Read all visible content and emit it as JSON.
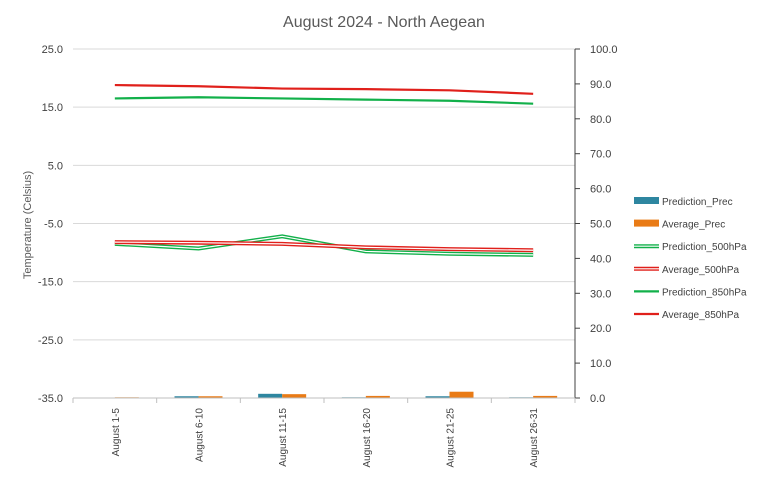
{
  "chart_data": {
    "type": "line",
    "title": "August 2024 - North Aegean",
    "ylabel": "Temperature  (Celsius)",
    "y2label": "",
    "xlabel": "",
    "ylim": [
      -35,
      25
    ],
    "y2lim": [
      0,
      100
    ],
    "yticks": [
      "25.0",
      "15.0",
      "5.0",
      "-5.0",
      "-15.0",
      "-25.0",
      "-35.0"
    ],
    "y2ticks": [
      "100.0",
      "90.0",
      "80.0",
      "70.0",
      "60.0",
      "50.0",
      "40.0",
      "30.0",
      "20.0",
      "10.0",
      "0.0"
    ],
    "grid": true,
    "legend_position": "right",
    "categories": [
      "August 1-5",
      "August 6-10",
      "August 11-15",
      "August 16-20",
      "August 21-25",
      "August 26-31"
    ],
    "bar_series": [
      {
        "name": "Prediction_Prec",
        "axis": "secondary",
        "color": "#2E86A0",
        "values": [
          0.1,
          0.5,
          1.2,
          0.2,
          0.5,
          0.2
        ]
      },
      {
        "name": "Average_Prec",
        "axis": "secondary",
        "color": "#E97B16",
        "values": [
          0.2,
          0.5,
          1.1,
          0.6,
          1.8,
          0.6
        ]
      }
    ],
    "line_series": [
      {
        "name": "Prediction_500hPa",
        "axis": "primary",
        "style": "double",
        "color": "#12B04A",
        "values": [
          -8.5,
          -9.3,
          -7.2,
          -9.8,
          -10.2,
          -10.4
        ]
      },
      {
        "name": "Average_500hPa",
        "axis": "primary",
        "style": "double",
        "color": "#E0201B",
        "values": [
          -8.2,
          -8.3,
          -8.5,
          -9.1,
          -9.4,
          -9.6
        ]
      },
      {
        "name": "Prediction_850hPa",
        "axis": "primary",
        "style": "solid",
        "color": "#12B04A",
        "values": [
          16.5,
          16.7,
          16.5,
          16.3,
          16.1,
          15.6
        ]
      },
      {
        "name": "Average_850hPa",
        "axis": "primary",
        "style": "solid",
        "color": "#E0201B",
        "values": [
          18.8,
          18.6,
          18.2,
          18.1,
          17.9,
          17.3
        ]
      }
    ]
  }
}
